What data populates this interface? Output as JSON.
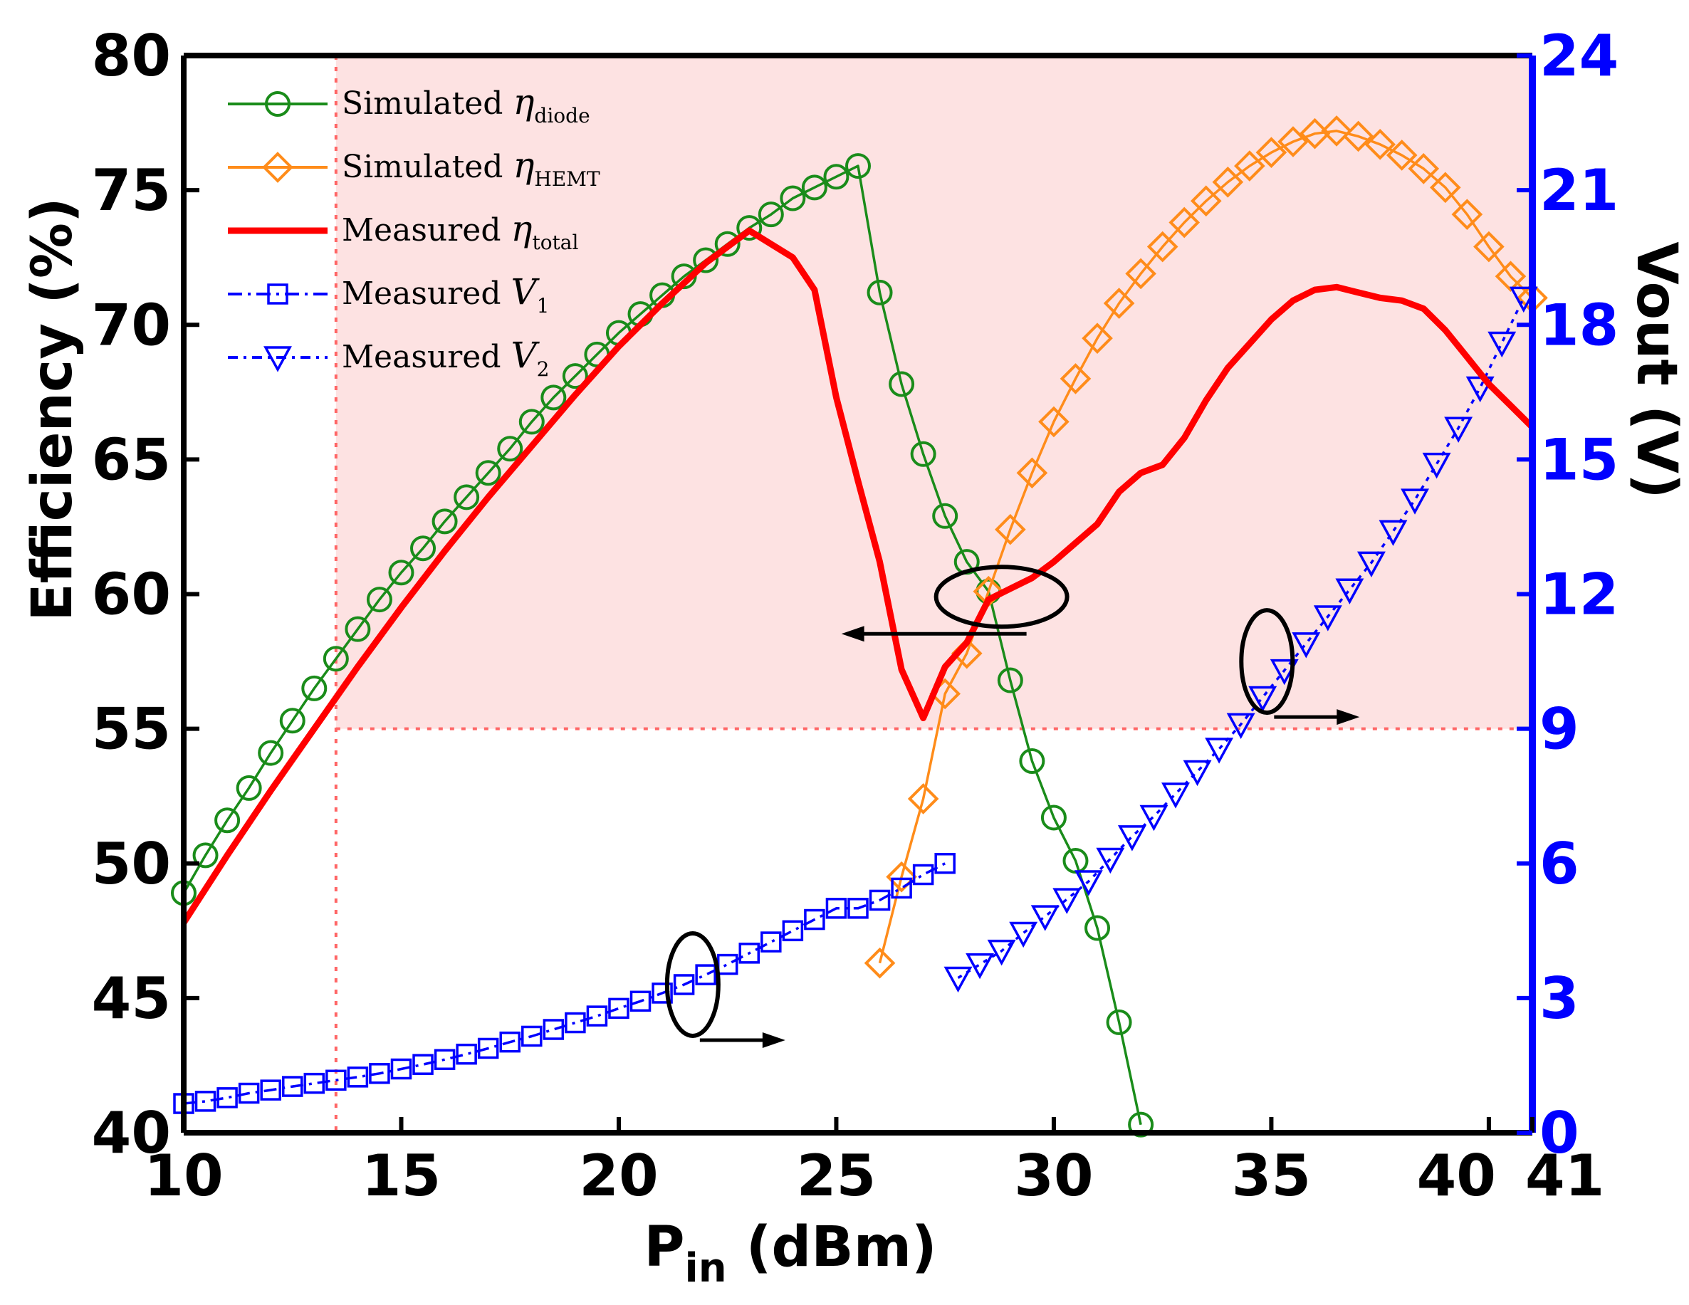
{
  "chart_data": {
    "type": "line",
    "xlabel": "P",
    "xlabel_sub": "in",
    "xlabel_unit": " (dBm)",
    "ylabel_left": "Efficiency (%)",
    "ylabel_right": "Vout (V)",
    "xlim": [
      10,
      41
    ],
    "ylim_left": [
      40,
      80
    ],
    "ylim_right": [
      0,
      24
    ],
    "x_ticks": [
      10,
      15,
      20,
      25,
      30,
      35,
      40,
      41
    ],
    "y_left_ticks": [
      40,
      45,
      50,
      55,
      60,
      65,
      70,
      75,
      80
    ],
    "y_right_ticks": [
      0,
      3,
      6,
      9,
      12,
      15,
      18,
      21,
      24
    ],
    "colors": {
      "diode": "#1a8c1a",
      "hemt": "#ff8c1a",
      "total": "#ff0000",
      "v": "#0000ff",
      "shade": "#fde2e2",
      "threshold": "#ff6666"
    },
    "shaded_region": {
      "x_from": 13.5,
      "y_from": 55
    },
    "legend": [
      {
        "label": "Simulated ",
        "eta": "η",
        "sub": "diode",
        "marker": "circle",
        "color": "#1a8c1a"
      },
      {
        "label": "Simulated ",
        "eta": "η",
        "sub": "HEMT",
        "marker": "diamond",
        "color": "#ff8c1a"
      },
      {
        "label": "Measured ",
        "eta": "η",
        "sub": "total",
        "marker": "none",
        "color": "#ff0000"
      },
      {
        "label": "Measured ",
        "eta": "V",
        "sub": "1",
        "marker": "square",
        "color": "#0000ff"
      },
      {
        "label": "Measured ",
        "eta": "V",
        "sub": "2",
        "marker": "triangle",
        "color": "#0000ff"
      }
    ],
    "series": [
      {
        "name": "Simulated η_diode",
        "axis": "left",
        "marker": "circle",
        "x": [
          10,
          10.5,
          11,
          11.5,
          12,
          12.5,
          13,
          13.5,
          14,
          14.5,
          15,
          15.5,
          16,
          16.5,
          17,
          17.5,
          18,
          18.5,
          19,
          19.5,
          20,
          20.5,
          21,
          21.5,
          22,
          22.5,
          23,
          23.5,
          24,
          24.5,
          25,
          25.5,
          26,
          26.5,
          27,
          27.5,
          28,
          28.5,
          29,
          29.5,
          30,
          30.5,
          31,
          31.5,
          32
        ],
        "y": [
          48.9,
          50.3,
          51.6,
          52.8,
          54.1,
          55.3,
          56.5,
          57.6,
          58.7,
          59.8,
          60.8,
          61.7,
          62.7,
          63.6,
          64.5,
          65.4,
          66.4,
          67.3,
          68.1,
          68.9,
          69.7,
          70.4,
          71.1,
          71.8,
          72.4,
          73.0,
          73.6,
          74.1,
          74.7,
          75.1,
          75.5,
          75.9,
          71.2,
          67.8,
          65.2,
          62.9,
          61.2,
          60.1,
          56.8,
          53.8,
          51.7,
          50.1,
          47.6,
          44.1,
          40.3
        ]
      },
      {
        "name": "Simulated η_HEMT",
        "axis": "left",
        "marker": "diamond",
        "x": [
          26,
          26.5,
          27,
          27.5,
          28,
          28.5,
          29,
          29.5,
          30,
          30.5,
          31,
          31.5,
          32,
          32.5,
          33,
          33.5,
          34,
          34.5,
          35,
          35.5,
          36,
          36.5,
          37,
          37.5,
          38,
          38.5,
          39,
          39.5,
          40,
          40.5,
          41
        ],
        "y": [
          46.3,
          49.5,
          52.4,
          56.3,
          57.8,
          60.1,
          62.4,
          64.5,
          66.4,
          68.0,
          69.5,
          70.8,
          71.9,
          72.9,
          73.8,
          74.6,
          75.3,
          75.9,
          76.4,
          76.8,
          77.1,
          77.2,
          77.0,
          76.7,
          76.3,
          75.8,
          75.1,
          74.1,
          72.9,
          71.8,
          71.0
        ]
      },
      {
        "name": "Measured η_total",
        "axis": "left",
        "marker": "none",
        "x": [
          10,
          11,
          12,
          13,
          14,
          15,
          16,
          17,
          18,
          19,
          20,
          21,
          22,
          23,
          24,
          24.5,
          25,
          25.5,
          26,
          26.5,
          27,
          27.5,
          28,
          28.5,
          29,
          29.5,
          30,
          31,
          31.5,
          32,
          32.5,
          33,
          33.5,
          34,
          34.5,
          35,
          35.5,
          36,
          36.5,
          37,
          37.5,
          38,
          38.5,
          39,
          39.5,
          40,
          40.5,
          41
        ],
        "y": [
          47.8,
          50.3,
          52.7,
          55.0,
          57.3,
          59.5,
          61.6,
          63.6,
          65.5,
          67.4,
          69.2,
          70.8,
          72.3,
          73.5,
          72.5,
          71.3,
          67.3,
          64.2,
          61.2,
          57.2,
          55.4,
          57.3,
          58.2,
          59.8,
          60.2,
          60.6,
          61.2,
          62.6,
          63.8,
          64.5,
          64.8,
          65.8,
          67.2,
          68.4,
          69.3,
          70.2,
          70.9,
          71.3,
          71.4,
          71.2,
          71.0,
          70.9,
          70.6,
          69.8,
          68.8,
          67.8,
          67.0,
          66.2
        ]
      },
      {
        "name": "Measured V1",
        "axis": "right",
        "marker": "square",
        "x": [
          10,
          10.5,
          11,
          11.5,
          12,
          12.5,
          13,
          13.5,
          14,
          14.5,
          15,
          15.5,
          16,
          16.5,
          17,
          17.5,
          18,
          18.5,
          19,
          19.5,
          20,
          20.5,
          21,
          21.5,
          22,
          22.5,
          23,
          23.5,
          24,
          24.5,
          25,
          25.5,
          26,
          26.5,
          27,
          27.5
        ],
        "y": [
          0.65,
          0.7,
          0.78,
          0.88,
          0.95,
          1.03,
          1.1,
          1.17,
          1.24,
          1.32,
          1.42,
          1.52,
          1.63,
          1.75,
          1.88,
          2.02,
          2.15,
          2.3,
          2.45,
          2.6,
          2.77,
          2.93,
          3.11,
          3.3,
          3.52,
          3.75,
          4.0,
          4.25,
          4.5,
          4.75,
          5.0,
          5.0,
          5.18,
          5.45,
          5.75,
          6.0
        ]
      },
      {
        "name": "Measured V2",
        "axis": "right",
        "marker": "triangle",
        "x": [
          27.8,
          28.3,
          28.8,
          29.3,
          29.8,
          30.3,
          30.8,
          31.3,
          31.8,
          32.3,
          32.8,
          33.3,
          33.8,
          34.3,
          34.8,
          35.3,
          35.8,
          36.3,
          36.8,
          37.3,
          37.8,
          38.3,
          38.8,
          39.3,
          39.8,
          40.3,
          40.8
        ],
        "y": [
          3.45,
          3.75,
          4.05,
          4.45,
          4.82,
          5.2,
          5.6,
          6.1,
          6.6,
          7.05,
          7.55,
          8.05,
          8.55,
          9.1,
          9.7,
          10.3,
          10.9,
          11.5,
          12.1,
          12.7,
          13.4,
          14.1,
          14.9,
          15.7,
          16.6,
          17.6,
          18.6
        ]
      }
    ],
    "annotations": [
      {
        "kind": "ellipse",
        "cx": 28.8,
        "cy": 59.9,
        "direction": "left",
        "target": "Efficiency axis"
      },
      {
        "kind": "ellipse",
        "cx": 21.7,
        "cy": 45.5,
        "direction": "right",
        "target": "Vout axis"
      },
      {
        "kind": "ellipse",
        "cx": 34.9,
        "cy": 57.5,
        "direction": "right",
        "target": "Vout axis"
      }
    ]
  }
}
